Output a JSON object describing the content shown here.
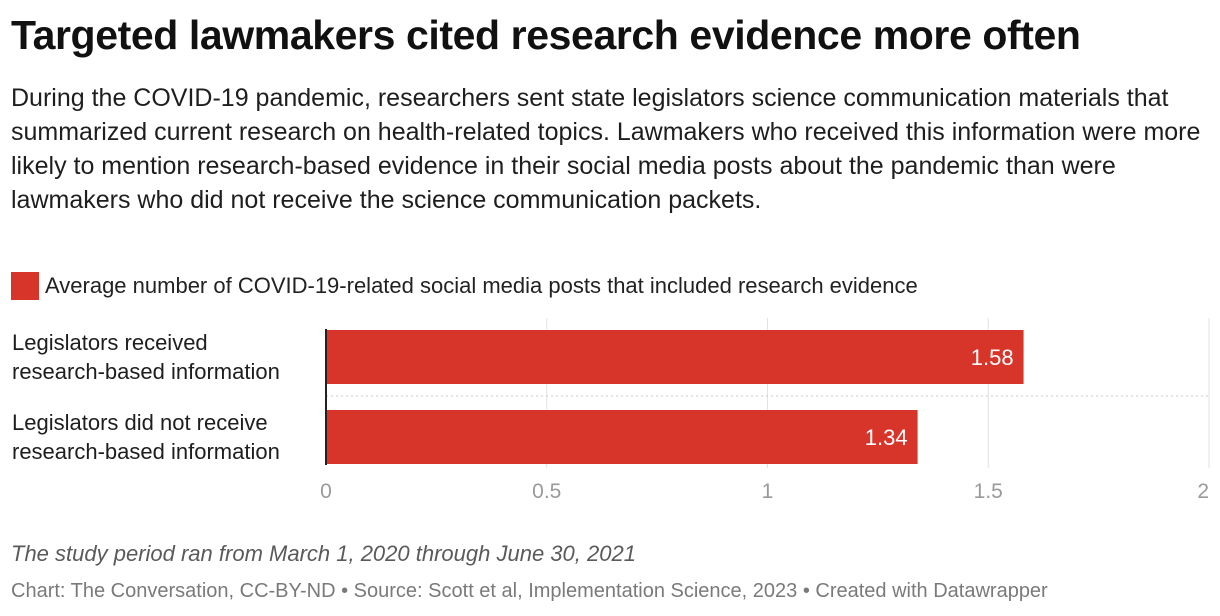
{
  "title": "Targeted lawmakers cited research evidence more often",
  "description": "During the COVID-19 pandemic, researchers sent state legislators science communication materials that summarized current research on health-related topics. Lawmakers who received this information were more likely to mention research-based evidence in their social media posts about the pandemic than were lawmakers who did not receive the science communication packets.",
  "legend": {
    "label": "Average number of COVID-19-related social media posts that included research evidence",
    "color": "#d8352a"
  },
  "notes": "The study period ran from March 1, 2020 through June 30, 2021",
  "credits": "Chart: The Conversation, CC-BY-ND • Source: Scott et al, Implementation Science, 2023 • Created with Datawrapper",
  "chart_data": {
    "type": "bar",
    "orientation": "horizontal",
    "categories": [
      [
        "Legislators received",
        "research-based information"
      ],
      [
        "Legislators did not receive",
        "research-based information"
      ]
    ],
    "values": [
      1.58,
      1.34
    ],
    "value_labels": [
      "1.58",
      "1.34"
    ],
    "xlim": [
      0,
      2
    ],
    "xticks": [
      0,
      0.5,
      1,
      1.5,
      2
    ],
    "xtick_labels": [
      "0",
      "0.5",
      "1",
      "1.5",
      "2"
    ],
    "grid": true,
    "bar_color": "#d8352a",
    "legend_position": "top-left"
  }
}
